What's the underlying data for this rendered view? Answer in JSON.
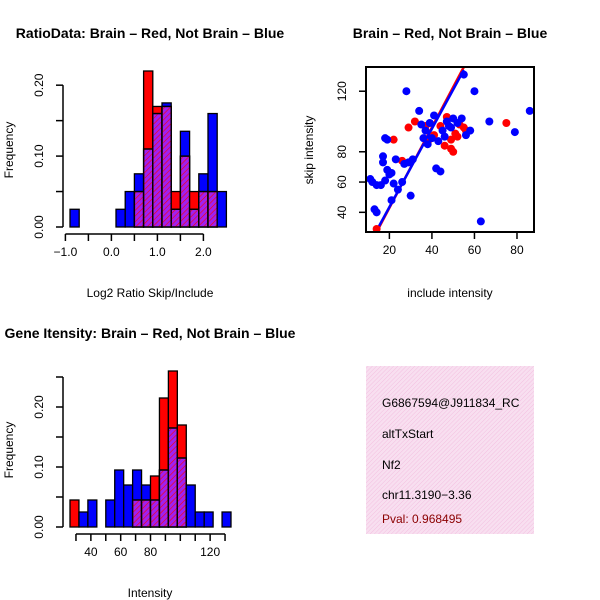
{
  "colors": {
    "brain": "#ff0000",
    "not_brain": "#0000ff",
    "overlap_fill": "#a020f0",
    "hatch": "#ff0000",
    "info_bg": "#f8dff0",
    "info_hatch": "#f2b8dc",
    "pval": "#8b0000",
    "axis": "#000000"
  },
  "chart_data": [
    {
      "id": "ratio-hist",
      "type": "bar",
      "title": "RatioData: Brain – Red, Not Brain – Blue",
      "xlabel": "Log2 Ratio Skip/Include",
      "ylabel": "Frequency",
      "xlim": [
        -0.9,
        2.6
      ],
      "ylim": [
        0,
        0.22
      ],
      "xticks": [
        -1.0,
        0.0,
        1.0,
        2.0
      ],
      "xtick_labels": [
        "−1.0",
        "0.0",
        "1.0",
        "2.0"
      ],
      "xticks_minor": [
        -0.5,
        0.5,
        1.5
      ],
      "yticks": [
        0.0,
        0.1,
        0.2
      ],
      "ytick_labels": [
        "0.00",
        "0.10",
        "0.20"
      ],
      "yticks_minor": [
        0.05,
        0.15
      ],
      "bin_edges": [
        -0.9,
        -0.7,
        -0.5,
        -0.3,
        -0.1,
        0.1,
        0.3,
        0.5,
        0.7,
        0.9,
        1.1,
        1.3,
        1.5,
        1.7,
        1.9,
        2.1,
        2.3,
        2.5
      ],
      "series": [
        {
          "name": "Brain",
          "values": [
            0,
            0,
            0,
            0,
            0,
            0,
            0,
            0.05,
            0.22,
            0.17,
            0.17,
            0.05,
            0.1,
            0.05,
            0.05,
            0.05,
            0
          ]
        },
        {
          "name": "Not Brain",
          "values": [
            0.025,
            0,
            0,
            0,
            0,
            0.025,
            0.05,
            0.075,
            0.11,
            0.16,
            0.175,
            0.025,
            0.135,
            0.025,
            0.075,
            0.16,
            0.05
          ]
        }
      ]
    },
    {
      "id": "intensity-scatter",
      "type": "scatter",
      "title": "Brain – Red, Not Brain – Blue",
      "xlabel": "include intensity",
      "ylabel": "skip intensity",
      "xlim": [
        9,
        88
      ],
      "ylim": [
        27,
        136
      ],
      "xticks": [
        20,
        40,
        60,
        80
      ],
      "xtick_labels": [
        "20",
        "40",
        "60",
        "80"
      ],
      "yticks": [
        40,
        60,
        80,
        120
      ],
      "ytick_labels": [
        "40",
        "60",
        "80",
        "120"
      ],
      "fit_lines": [
        {
          "name": "Brain",
          "x": [
            14,
            55
          ],
          "y": [
            27,
            136
          ]
        },
        {
          "name": "Not Brain",
          "x": [
            14,
            55
          ],
          "y": [
            28,
            134
          ]
        }
      ],
      "series": [
        {
          "name": "Brain",
          "points": [
            [
              14,
              29
            ],
            [
              22,
              88
            ],
            [
              26,
              74
            ],
            [
              29,
              96
            ],
            [
              32,
              100
            ],
            [
              37,
              97
            ],
            [
              38,
              86
            ],
            [
              41,
              91
            ],
            [
              44,
              97
            ],
            [
              46,
              84
            ],
            [
              47,
              103
            ],
            [
              49,
              88
            ],
            [
              49,
              82
            ],
            [
              50,
              80
            ],
            [
              51,
              92
            ],
            [
              52,
              90
            ],
            [
              53,
              98
            ],
            [
              55,
              96
            ],
            [
              56,
              94
            ],
            [
              75,
              99
            ]
          ]
        },
        {
          "name": "Not Brain",
          "points": [
            [
              11,
              62
            ],
            [
              12,
              60
            ],
            [
              13,
              42
            ],
            [
              14,
              58
            ],
            [
              14,
              40
            ],
            [
              16,
              58
            ],
            [
              17,
              73
            ],
            [
              17,
              77
            ],
            [
              18,
              61
            ],
            [
              18,
              89
            ],
            [
              19,
              68
            ],
            [
              19,
              88
            ],
            [
              20,
              65
            ],
            [
              21,
              66
            ],
            [
              21,
              48
            ],
            [
              22,
              59
            ],
            [
              23,
              75
            ],
            [
              24,
              55
            ],
            [
              26,
              60
            ],
            [
              27,
              72
            ],
            [
              28,
              120
            ],
            [
              29,
              73
            ],
            [
              30,
              51
            ],
            [
              31,
              75
            ],
            [
              34,
              107
            ],
            [
              35,
              98
            ],
            [
              36,
              89
            ],
            [
              37,
              94
            ],
            [
              38,
              85
            ],
            [
              39,
              99
            ],
            [
              40,
              89
            ],
            [
              41,
              104
            ],
            [
              42,
              69
            ],
            [
              43,
              87
            ],
            [
              44,
              67
            ],
            [
              45,
              94
            ],
            [
              46,
              90
            ],
            [
              47,
              100
            ],
            [
              48,
              97
            ],
            [
              49,
              96
            ],
            [
              50,
              102
            ],
            [
              52,
              99
            ],
            [
              54,
              102
            ],
            [
              55,
              131
            ],
            [
              56,
              91
            ],
            [
              58,
              94
            ],
            [
              60,
              120
            ],
            [
              63,
              34
            ],
            [
              67,
              100
            ],
            [
              79,
              93
            ],
            [
              86,
              107
            ]
          ]
        }
      ]
    },
    {
      "id": "intensity-hist",
      "type": "bar",
      "title": "Gene Itensity: Brain – Red, Not Brain – Blue",
      "xlabel": "Intensity",
      "ylabel": "Frequency",
      "xlim": [
        26,
        134
      ],
      "ylim": [
        0,
        0.26
      ],
      "xticks": [
        40,
        60,
        80,
        120
      ],
      "xtick_labels": [
        "40",
        "60",
        "80",
        "120"
      ],
      "xticks_minor": [
        30,
        50,
        70,
        90,
        100,
        110,
        130
      ],
      "yticks": [
        0.0,
        0.1,
        0.2
      ],
      "ytick_labels": [
        "0.00",
        "0.10",
        "0.20"
      ],
      "yticks_minor": [
        0.05,
        0.15,
        0.25
      ],
      "bin_edges": [
        26,
        32,
        38,
        44,
        50,
        56,
        62,
        68,
        74,
        80,
        86,
        92,
        98,
        104,
        110,
        116,
        122,
        128,
        134
      ],
      "series": [
        {
          "name": "Brain",
          "values": [
            0.045,
            0,
            0,
            0,
            0,
            0,
            0,
            0.045,
            0.045,
            0.085,
            0.215,
            0.26,
            0.17,
            0,
            0,
            0,
            0,
            0
          ]
        },
        {
          "name": "Not Brain",
          "values": [
            0,
            0.025,
            0.045,
            0,
            0.045,
            0.095,
            0.07,
            0.095,
            0.07,
            0.045,
            0.095,
            0.165,
            0.115,
            0.07,
            0.025,
            0.025,
            0,
            0.025
          ]
        }
      ]
    }
  ],
  "info_panel": {
    "gene_id": "G6867594@J911834_RC",
    "event_type": "altTxStart",
    "gene_symbol": "Nf2",
    "location": "chr11.3190−3.36",
    "pval": "Pval: 0.968495"
  }
}
